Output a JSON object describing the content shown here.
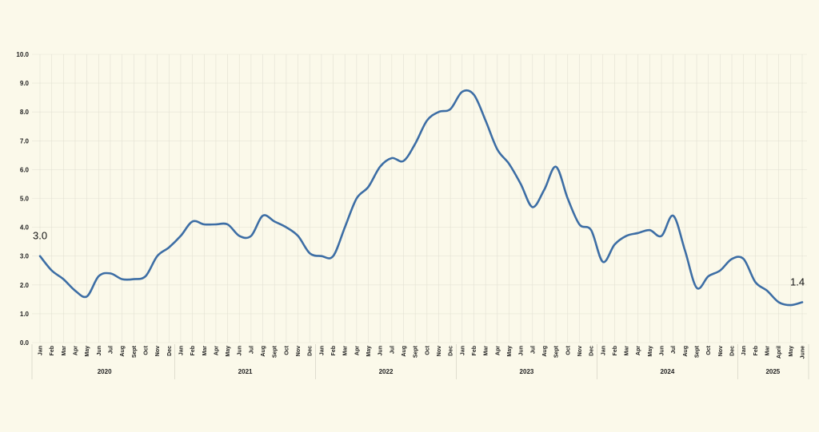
{
  "chart_data": {
    "type": "line",
    "title": "",
    "xlabel": "",
    "ylabel": "",
    "ylim": [
      0,
      10
    ],
    "yticks": [
      "0.0",
      "1.0",
      "2.0",
      "3.0",
      "4.0",
      "5.0",
      "6.0",
      "7.0",
      "8.0",
      "9.0",
      "10.0"
    ],
    "grid": true,
    "series_color": "#3d6ea5",
    "categories": [
      "Jan",
      "Feb",
      "Mar",
      "Apr",
      "May",
      "Jun",
      "Jul",
      "Aug",
      "Sept",
      "Oct",
      "Nov",
      "Dec",
      "Jan",
      "Feb",
      "Mar",
      "Apr",
      "May",
      "Jun",
      "Jul",
      "Aug",
      "Sept",
      "Oct",
      "Nov",
      "Dec",
      "Jan",
      "Feb",
      "Mar",
      "Apr",
      "May",
      "Jun",
      "Jul",
      "Aug",
      "Sept",
      "Oct",
      "Nov",
      "Dec",
      "Jan",
      "Feb",
      "Mar",
      "Apr",
      "May",
      "Jun",
      "Jul",
      "Aug",
      "Sept",
      "Oct",
      "Nov",
      "Dec",
      "Jan",
      "Feb",
      "Mar",
      "Apr",
      "May",
      "Jun",
      "Jul",
      "Aug",
      "Sept",
      "Oct",
      "Nov",
      "Dec",
      "Jan",
      "Feb",
      "Mar",
      "April",
      "May",
      "June"
    ],
    "years": [
      {
        "label": "2020",
        "months": 12
      },
      {
        "label": "2021",
        "months": 12
      },
      {
        "label": "2022",
        "months": 12
      },
      {
        "label": "2023",
        "months": 12
      },
      {
        "label": "2024",
        "months": 12
      },
      {
        "label": "2025",
        "months": 6
      }
    ],
    "values": [
      3.0,
      2.5,
      2.2,
      1.8,
      1.6,
      2.3,
      2.4,
      2.2,
      2.2,
      2.3,
      3.0,
      3.3,
      3.7,
      4.2,
      4.1,
      4.1,
      4.1,
      3.7,
      3.7,
      4.4,
      4.2,
      4.0,
      3.7,
      3.1,
      3.0,
      3.0,
      4.0,
      5.0,
      5.4,
      6.1,
      6.4,
      6.3,
      6.9,
      7.7,
      8.0,
      8.1,
      8.7,
      8.6,
      7.7,
      6.7,
      6.2,
      5.5,
      4.7,
      5.3,
      6.1,
      5.0,
      4.1,
      3.9,
      2.8,
      3.4,
      3.7,
      3.8,
      3.9,
      3.7,
      4.4,
      3.2,
      1.9,
      2.3,
      2.5,
      2.9,
      2.9,
      2.1,
      1.8,
      1.4,
      1.3,
      1.4
    ],
    "annotations": [
      {
        "label": "3.0",
        "index": 0
      },
      {
        "label": "1.4",
        "index": 65
      }
    ]
  }
}
